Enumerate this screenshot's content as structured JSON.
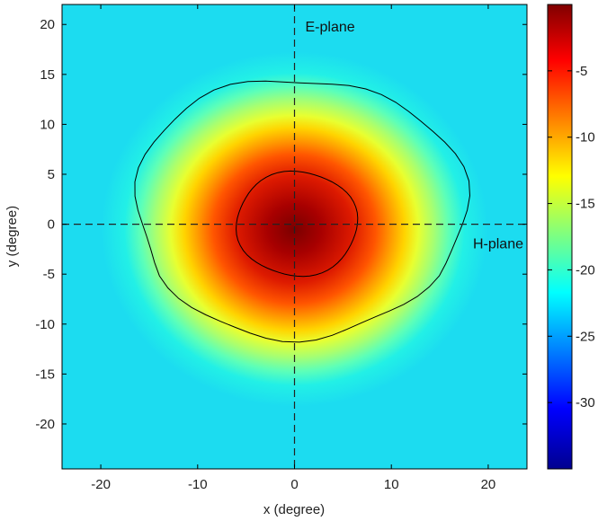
{
  "chart_data": {
    "type": "heatmap",
    "title": "",
    "xlabel": "x (degree)",
    "ylabel": "y (degree)",
    "xlim": [
      -24,
      24
    ],
    "ylim": [
      -24.5,
      22
    ],
    "x_ticks": [
      -20,
      -10,
      0,
      10,
      20
    ],
    "y_ticks": [
      20,
      15,
      10,
      5,
      0,
      -5,
      -10,
      -15,
      -20
    ],
    "colorbar": {
      "colormap": "jet",
      "range": [
        -35,
        0
      ],
      "ticks": [
        -5,
        -10,
        -15,
        -20,
        -25,
        -30
      ]
    },
    "peak": {
      "x": 0,
      "y": -0.5,
      "value": 0
    },
    "contours": [
      {
        "level": -3,
        "extent": {
          "x_min": -6,
          "x_max": 6.5,
          "y_min": -5.2,
          "y_max": 5.3
        }
      },
      {
        "level": -12,
        "extent": {
          "x_min": -16.5,
          "x_max": 17.5,
          "y_min": -12,
          "y_max": 14.8
        }
      }
    ],
    "grid": false,
    "reference_lines": [
      {
        "axis": "x",
        "value": 0,
        "label": "E-plane"
      },
      {
        "axis": "y",
        "value": 0,
        "label": "H-plane"
      }
    ]
  }
}
